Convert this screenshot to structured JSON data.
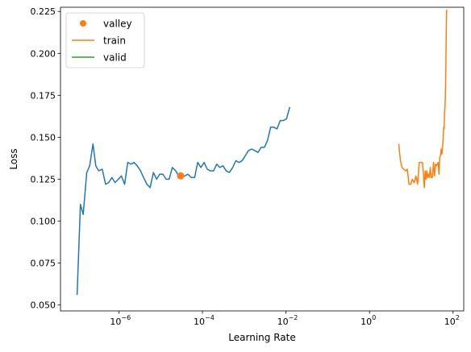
{
  "chart_data": {
    "type": "line",
    "xlabel": "Learning Rate",
    "ylabel": "Loss",
    "xscale": "log",
    "xlim": [
      4e-08,
      180
    ],
    "ylim": [
      0.0465,
      0.2275
    ],
    "grid": false,
    "legend_position": "top-left",
    "x_ticks": [
      {
        "value": 1e-06,
        "label": "10",
        "exp": "−6"
      },
      {
        "value": 0.0001,
        "label": "10",
        "exp": "−4"
      },
      {
        "value": 0.01,
        "label": "10",
        "exp": "−2"
      },
      {
        "value": 1,
        "label": "10",
        "exp": "0"
      },
      {
        "value": 100,
        "label": "10",
        "exp": "2"
      }
    ],
    "y_ticks": [
      {
        "value": 0.05,
        "label": "0.050"
      },
      {
        "value": 0.075,
        "label": "0.075"
      },
      {
        "value": 0.1,
        "label": "0.100"
      },
      {
        "value": 0.125,
        "label": "0.125"
      },
      {
        "value": 0.15,
        "label": "0.150"
      },
      {
        "value": 0.175,
        "label": "0.175"
      },
      {
        "value": 0.2,
        "label": "0.200"
      },
      {
        "value": 0.225,
        "label": "0.225"
      }
    ],
    "legend": [
      {
        "name": "valley",
        "color": "#ff7f0e",
        "marker": "dot"
      },
      {
        "name": "train",
        "color": "#ff7f0e",
        "marker": "line"
      },
      {
        "name": "valid",
        "color": "#2ca02c",
        "marker": "line"
      }
    ],
    "series": [
      {
        "name": "",
        "color": "#1f77b4",
        "points": [
          [
            1e-07,
            0.056
          ],
          [
            1.2e-07,
            0.11
          ],
          [
            1.4e-07,
            0.104
          ],
          [
            1.7e-07,
            0.129
          ],
          [
            2e-07,
            0.133
          ],
          [
            2.4e-07,
            0.146
          ],
          [
            2.8e-07,
            0.133
          ],
          [
            3.3e-07,
            0.13
          ],
          [
            4e-07,
            0.131
          ],
          [
            4.8e-07,
            0.122
          ],
          [
            5.7e-07,
            0.123
          ],
          [
            6.8e-07,
            0.126
          ],
          [
            8.1e-07,
            0.123
          ],
          [
            9.7e-07,
            0.125
          ],
          [
            1.15e-06,
            0.127
          ],
          [
            1.37e-06,
            0.122
          ],
          [
            1.63e-06,
            0.135
          ],
          [
            1.95e-06,
            0.134
          ],
          [
            2.3e-06,
            0.135
          ],
          [
            2.75e-06,
            0.133
          ],
          [
            3.3e-06,
            0.13
          ],
          [
            3.9e-06,
            0.126
          ],
          [
            4.7e-06,
            0.122
          ],
          [
            5.6e-06,
            0.12
          ],
          [
            6.7e-06,
            0.129
          ],
          [
            8e-06,
            0.125
          ],
          [
            9.5e-06,
            0.128
          ],
          [
            1.13e-05,
            0.128
          ],
          [
            1.35e-05,
            0.125
          ],
          [
            1.6e-05,
            0.125
          ],
          [
            1.9e-05,
            0.132
          ],
          [
            2.3e-05,
            0.13
          ],
          [
            2.7e-05,
            0.127
          ],
          [
            3.2e-05,
            0.126
          ],
          [
            3.8e-05,
            0.127
          ],
          [
            4.5e-05,
            0.128
          ],
          [
            5.4e-05,
            0.126
          ],
          [
            6.5e-05,
            0.126
          ],
          [
            7.7e-05,
            0.135
          ],
          [
            9.2e-05,
            0.132
          ],
          [
            0.00011,
            0.135
          ],
          [
            0.00013,
            0.131
          ],
          [
            0.000155,
            0.13
          ],
          [
            0.000185,
            0.13
          ],
          [
            0.00022,
            0.134
          ],
          [
            0.00026,
            0.132
          ],
          [
            0.00031,
            0.133
          ],
          [
            0.00037,
            0.13
          ],
          [
            0.00044,
            0.129
          ],
          [
            0.00053,
            0.132
          ],
          [
            0.00063,
            0.136
          ],
          [
            0.00075,
            0.135
          ],
          [
            0.00089,
            0.136
          ],
          [
            0.00106,
            0.139
          ],
          [
            0.00126,
            0.142
          ],
          [
            0.0015,
            0.143
          ],
          [
            0.0018,
            0.142
          ],
          [
            0.00215,
            0.141
          ],
          [
            0.00255,
            0.144
          ],
          [
            0.00305,
            0.144
          ],
          [
            0.0036,
            0.148
          ],
          [
            0.0043,
            0.156
          ],
          [
            0.0051,
            0.156
          ],
          [
            0.0061,
            0.155
          ],
          [
            0.0073,
            0.16
          ],
          [
            0.0087,
            0.16
          ],
          [
            0.0103,
            0.161
          ],
          [
            0.0123,
            0.168
          ]
        ]
      },
      {
        "name": "train",
        "color": "#ff7f0e",
        "points": [
          [
            5.0,
            0.146
          ],
          [
            5.5,
            0.136
          ],
          [
            6.0,
            0.132
          ],
          [
            6.6,
            0.131
          ],
          [
            7.3,
            0.13
          ],
          [
            8.0,
            0.131
          ],
          [
            8.8,
            0.122
          ],
          [
            9.7,
            0.122
          ],
          [
            10.6,
            0.125
          ],
          [
            11.7,
            0.123
          ],
          [
            12.9,
            0.127
          ],
          [
            14.2,
            0.122
          ],
          [
            15.5,
            0.135
          ],
          [
            17.0,
            0.135
          ],
          [
            18.5,
            0.135
          ],
          [
            19.5,
            0.128
          ],
          [
            20.5,
            0.12
          ],
          [
            21.5,
            0.13
          ],
          [
            22.5,
            0.125
          ],
          [
            23.5,
            0.13
          ],
          [
            24.5,
            0.126
          ],
          [
            25.5,
            0.128
          ],
          [
            27.0,
            0.126
          ],
          [
            28.5,
            0.132
          ],
          [
            30.0,
            0.126
          ],
          [
            32.0,
            0.126
          ],
          [
            34.0,
            0.135
          ],
          [
            36.0,
            0.127
          ],
          [
            38.0,
            0.134
          ],
          [
            40.0,
            0.133
          ],
          [
            42.0,
            0.134
          ],
          [
            44.0,
            0.135
          ],
          [
            46.0,
            0.128
          ],
          [
            48.0,
            0.138
          ],
          [
            50.0,
            0.139
          ],
          [
            52.0,
            0.143
          ],
          [
            54.0,
            0.14
          ],
          [
            56.0,
            0.144
          ],
          [
            58.0,
            0.149
          ],
          [
            59.5,
            0.156
          ],
          [
            61.0,
            0.155
          ],
          [
            62.5,
            0.165
          ],
          [
            64.0,
            0.168
          ],
          [
            65.5,
            0.175
          ],
          [
            67.0,
            0.19
          ],
          [
            68.5,
            0.21
          ],
          [
            70.0,
            0.226
          ]
        ]
      },
      {
        "name": "valid",
        "color": "#2ca02c",
        "points": []
      }
    ],
    "valley": {
      "x": 3e-05,
      "y": 0.127,
      "color": "#ff7f0e"
    }
  }
}
